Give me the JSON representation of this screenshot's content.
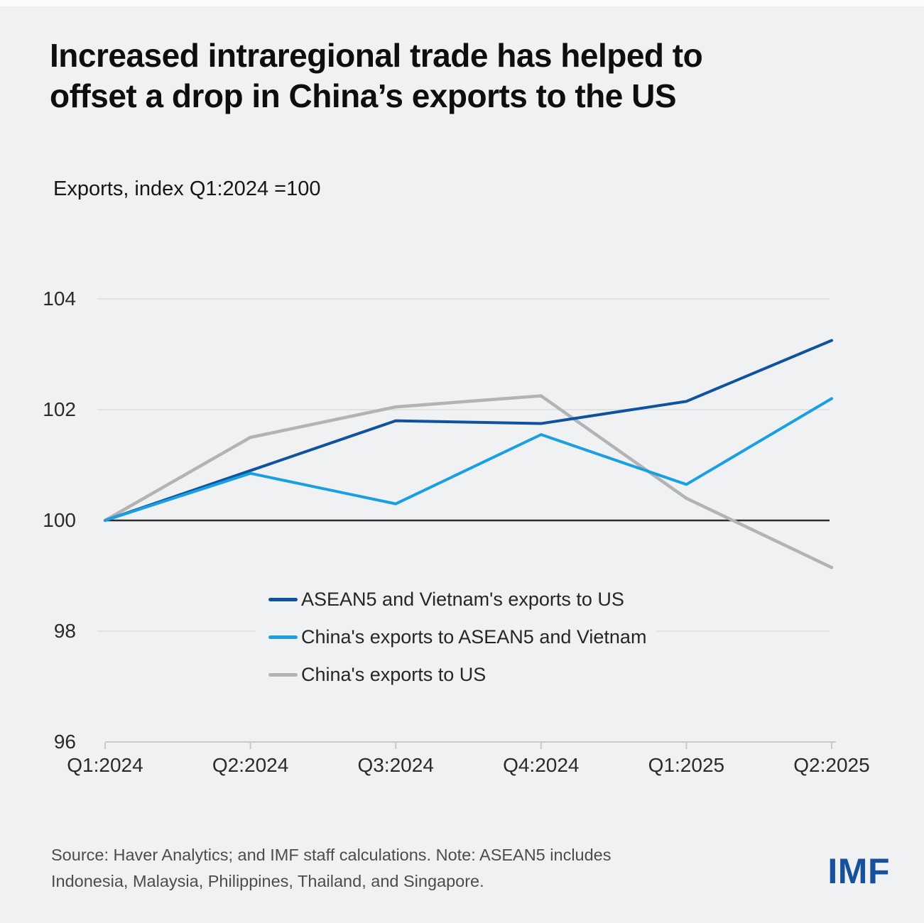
{
  "header": {
    "title_lines": [
      "Increased intraregional trade has helped to",
      "offset a drop in China’s exports to the US"
    ],
    "subtitle": "Exports, index Q1:2024 =100"
  },
  "chart_data": {
    "type": "line",
    "title": "Increased intraregional trade has helped to offset a drop in China’s exports to the US",
    "subtitle": "Exports, index Q1:2024 =100",
    "categories": [
      "Q1:2024",
      "Q2:2024",
      "Q3:2024",
      "Q4:2024",
      "Q1:2025",
      "Q2:2025"
    ],
    "series": [
      {
        "name": "ASEAN5 and Vietnam's exports to US",
        "color": "#0f529e",
        "values": [
          100,
          100.9,
          101.8,
          101.75,
          102.15,
          103.25
        ]
      },
      {
        "name": "China's exports to ASEAN5 and Vietnam",
        "color": "#1aa0e2",
        "values": [
          100,
          100.85,
          100.3,
          101.55,
          100.65,
          102.2
        ]
      },
      {
        "name": "China's exports to US",
        "color": "#b1b3b5",
        "values": [
          100,
          101.5,
          102.05,
          102.25,
          100.4,
          99.15
        ]
      }
    ],
    "ylim": [
      96,
      104
    ],
    "yticks": [
      104,
      102,
      100,
      98,
      96
    ],
    "baseline_value": 100,
    "grid": "horizontal",
    "legend_position": "inside-lower-center"
  },
  "footer": {
    "lines": [
      "Source: Haver Analytics; and IMF staff calculations. Note: ASEAN5 includes",
      "Indonesia, Malaysia, Philippines, Thailand, and Singapore."
    ],
    "logo": "IMF"
  },
  "colors": {
    "background": "#f0f1f3",
    "gridline": "#dbdcdd",
    "axis": "#c8c9cb",
    "baseline": "#2d2d2d",
    "logo_blue": "#17519e"
  }
}
